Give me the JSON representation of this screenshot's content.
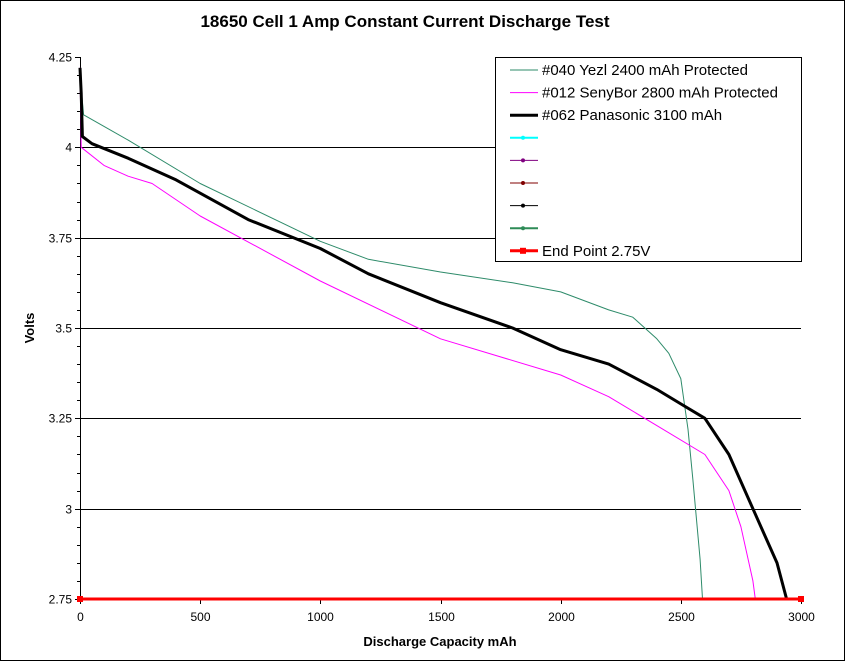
{
  "chart_data": {
    "type": "line",
    "title": "18650 Cell 1 Amp Constant Current Discharge Test",
    "xlabel": "Discharge Capacity mAh",
    "ylabel": "Volts",
    "xlim": [
      0,
      3000
    ],
    "ylim": [
      2.75,
      4.25
    ],
    "xticks": [
      0,
      500,
      1000,
      1500,
      2000,
      2500,
      3000
    ],
    "yticks": [
      2.75,
      3,
      3.25,
      3.5,
      3.75,
      4,
      4.25
    ],
    "ytick_labels": [
      "2.75",
      "3",
      "3.25",
      "3.5",
      "3.75",
      "4",
      "4.25"
    ],
    "grid": "horizontal",
    "legend_position": "top-right",
    "series": [
      {
        "name": "#040 Yezl 2400 mAh Protected",
        "color": "#2e8b6a",
        "width": 1,
        "points": [
          [
            0,
            4.2
          ],
          [
            15,
            4.09
          ],
          [
            200,
            4.02
          ],
          [
            500,
            3.9
          ],
          [
            1000,
            3.74
          ],
          [
            1200,
            3.69
          ],
          [
            1500,
            3.655
          ],
          [
            1800,
            3.625
          ],
          [
            2000,
            3.6
          ],
          [
            2200,
            3.55
          ],
          [
            2300,
            3.53
          ],
          [
            2400,
            3.47
          ],
          [
            2450,
            3.43
          ],
          [
            2500,
            3.36
          ],
          [
            2530,
            3.22
          ],
          [
            2550,
            3.08
          ],
          [
            2580,
            2.86
          ],
          [
            2590,
            2.75
          ]
        ]
      },
      {
        "name": "#012 SenyBor 2800 mAh Protected",
        "color": "#ff00ff",
        "width": 1,
        "points": [
          [
            0,
            4.22
          ],
          [
            5,
            4.0
          ],
          [
            100,
            3.95
          ],
          [
            200,
            3.92
          ],
          [
            300,
            3.9
          ],
          [
            500,
            3.81
          ],
          [
            1000,
            3.63
          ],
          [
            1500,
            3.47
          ],
          [
            2000,
            3.37
          ],
          [
            2200,
            3.31
          ],
          [
            2400,
            3.23
          ],
          [
            2600,
            3.15
          ],
          [
            2700,
            3.05
          ],
          [
            2750,
            2.95
          ],
          [
            2800,
            2.8
          ],
          [
            2810,
            2.75
          ]
        ]
      },
      {
        "name": "#062 Panasonic 3100 mAh",
        "color": "#000000",
        "width": 3,
        "points": [
          [
            0,
            4.22
          ],
          [
            5,
            4.15
          ],
          [
            10,
            4.03
          ],
          [
            50,
            4.01
          ],
          [
            200,
            3.97
          ],
          [
            400,
            3.91
          ],
          [
            700,
            3.8
          ],
          [
            1000,
            3.72
          ],
          [
            1200,
            3.65
          ],
          [
            1500,
            3.57
          ],
          [
            1800,
            3.5
          ],
          [
            2000,
            3.44
          ],
          [
            2200,
            3.4
          ],
          [
            2400,
            3.33
          ],
          [
            2500,
            3.29
          ],
          [
            2600,
            3.25
          ],
          [
            2700,
            3.15
          ],
          [
            2800,
            3.0
          ],
          [
            2900,
            2.85
          ],
          [
            2940,
            2.75
          ]
        ]
      },
      {
        "name": "",
        "color": "#00ffff",
        "width": 2,
        "points": []
      },
      {
        "name": "",
        "color": "#800080",
        "width": 1,
        "points": []
      },
      {
        "name": "",
        "color": "#800000",
        "width": 1,
        "points": []
      },
      {
        "name": "",
        "color": "#000000",
        "width": 1,
        "points": []
      },
      {
        "name": "",
        "color": "#2e8b57",
        "width": 2,
        "points": []
      },
      {
        "name": "End Point 2.75V",
        "color": "#ff0000",
        "width": 3,
        "points": [
          [
            0,
            2.75
          ],
          [
            3000,
            2.75
          ]
        ]
      }
    ]
  }
}
